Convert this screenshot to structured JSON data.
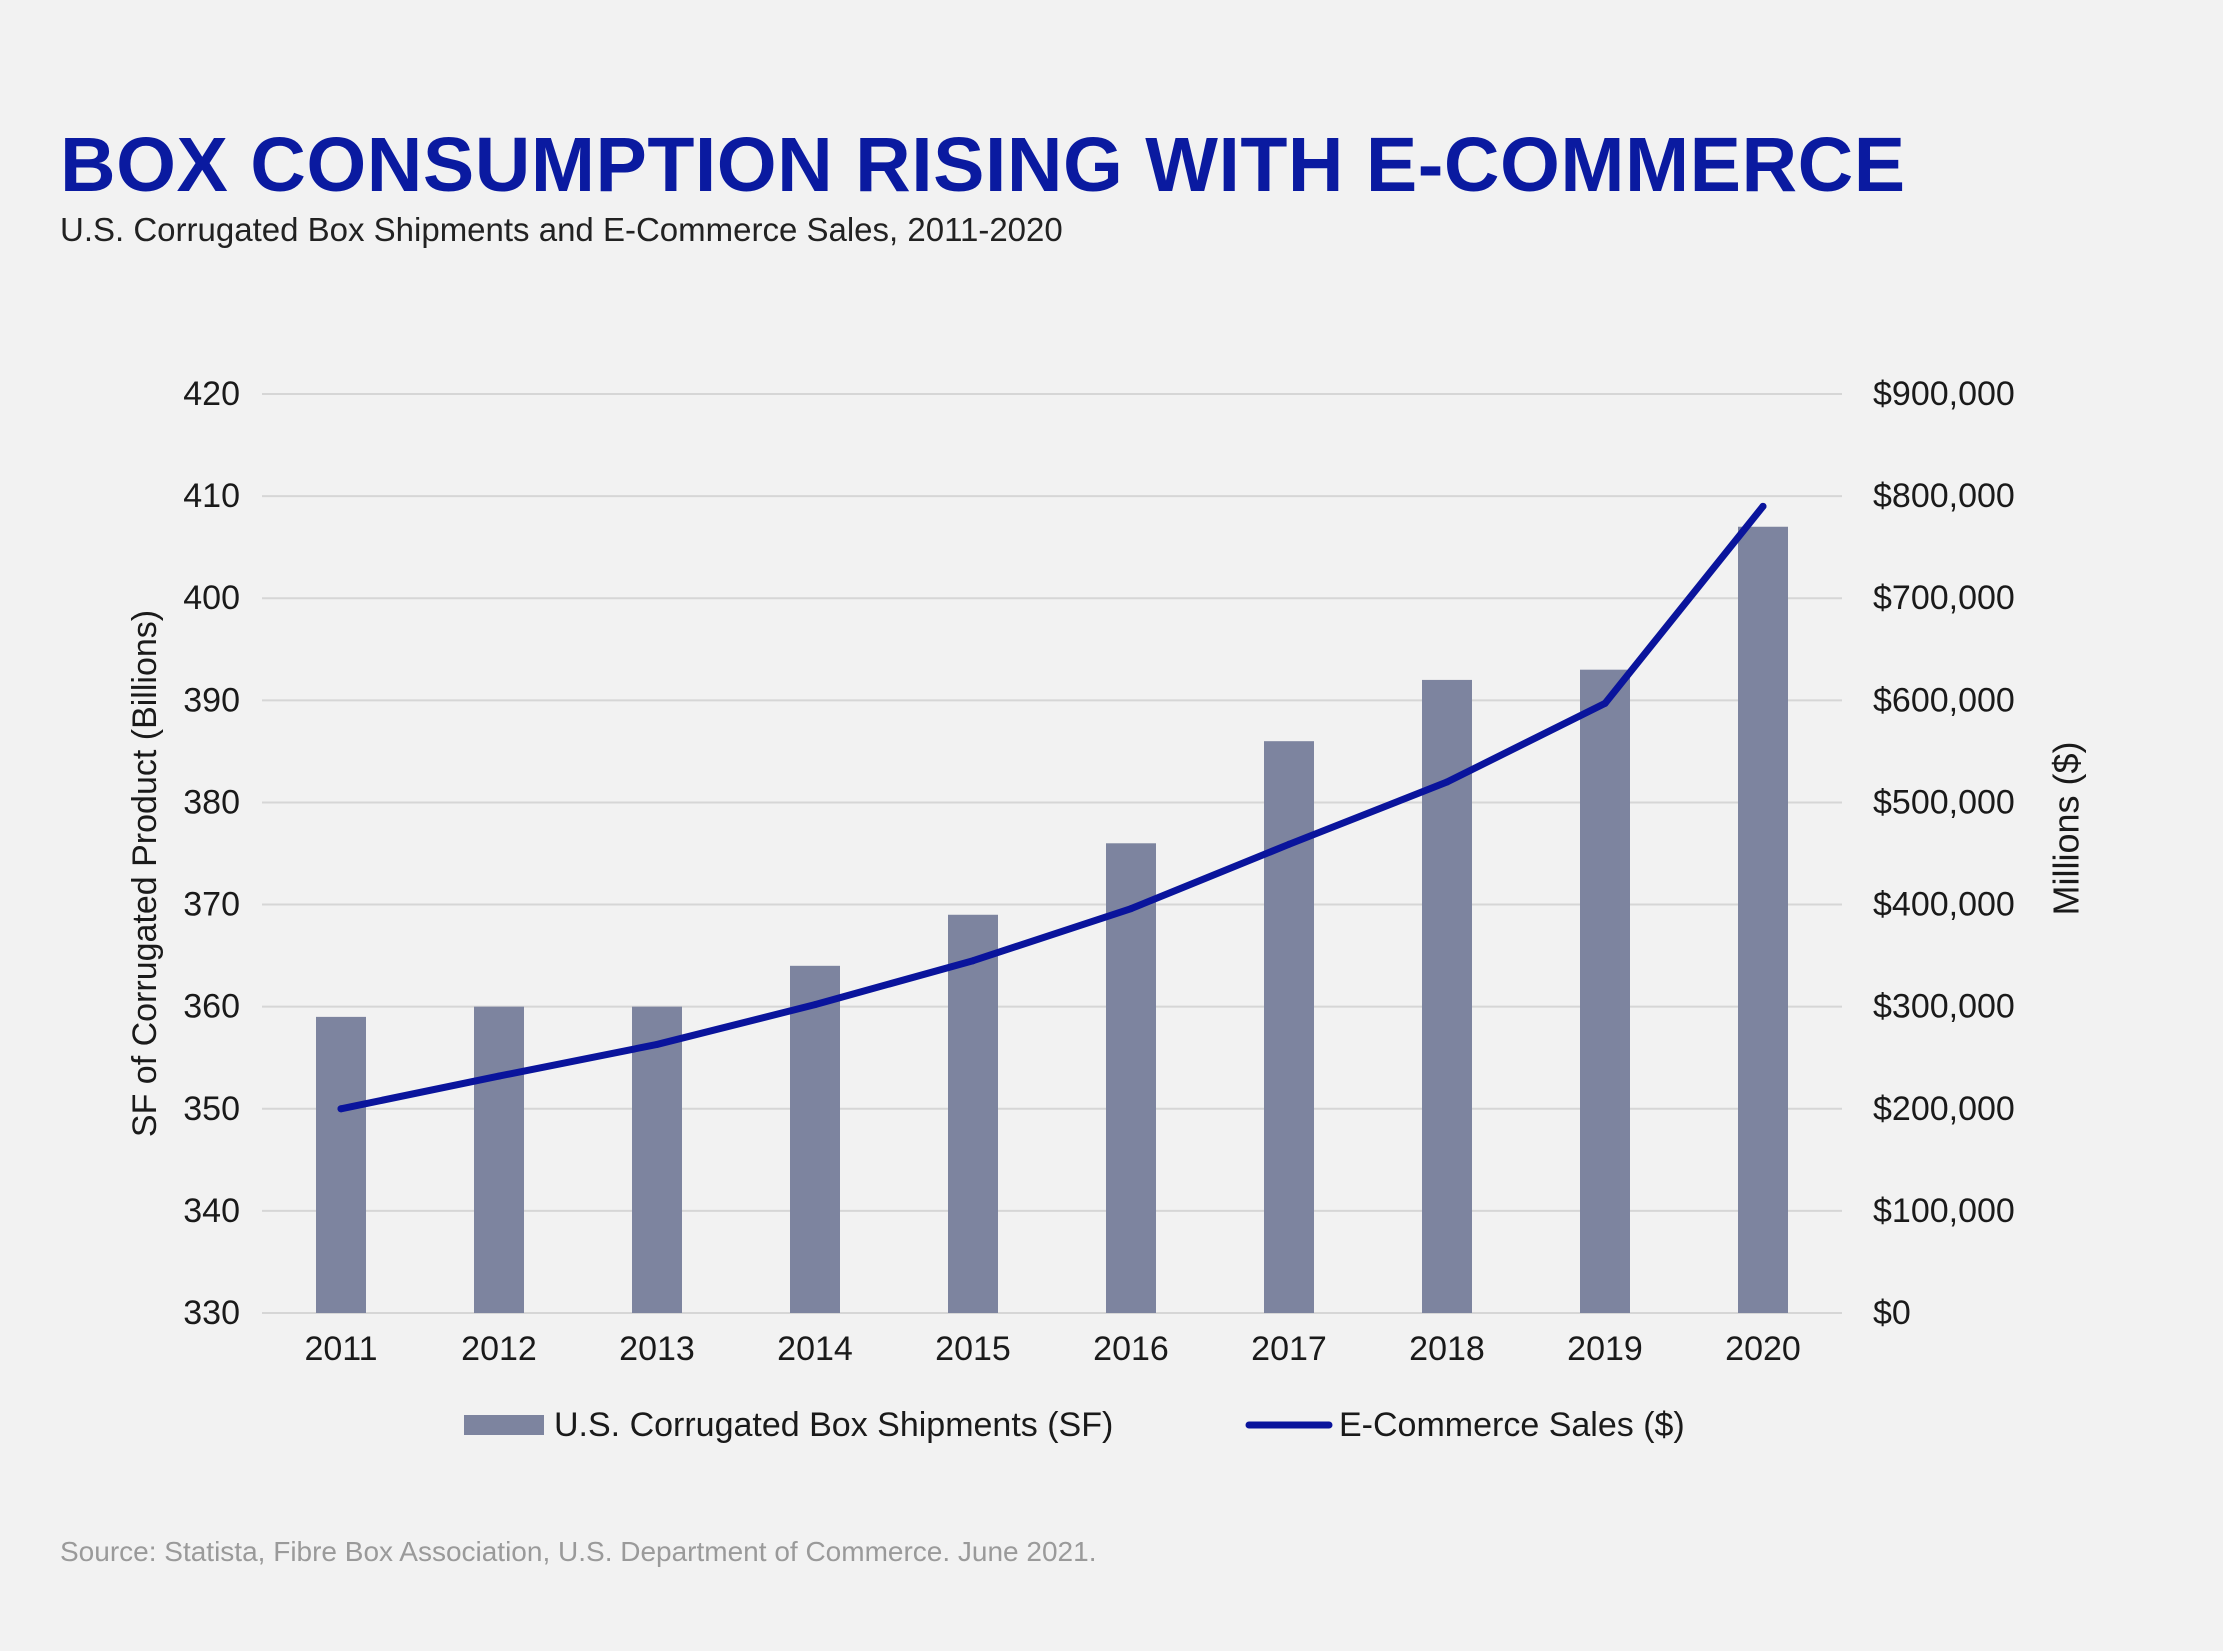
{
  "header": {
    "title": "BOX CONSUMPTION RISING WITH E-COMMERCE",
    "subtitle": "U.S. Corrugated Box Shipments and E-Commerce Sales, 2011-2020"
  },
  "footer": {
    "source": "Source: Statista, Fibre Box Association, U.S. Department of Commerce. June 2021."
  },
  "colors": {
    "bar": "#7d849f",
    "line": "#0a149c",
    "grid": "#d6d6d6",
    "title": "#0a1aa0"
  },
  "chart_data": {
    "type": "bar",
    "categories": [
      "2011",
      "2012",
      "2013",
      "2014",
      "2015",
      "2016",
      "2017",
      "2018",
      "2019",
      "2020"
    ],
    "series": [
      {
        "name": "U.S. Corrugated Box Shipments (SF)",
        "type": "bar",
        "axis": "left",
        "values": [
          359,
          360,
          360,
          364,
          369,
          376,
          386,
          392,
          393,
          407
        ]
      },
      {
        "name": "E-Commerce Sales ($)",
        "type": "line",
        "axis": "right",
        "values": [
          200000,
          232000,
          263000,
          302000,
          345000,
          396000,
          459000,
          520000,
          597000,
          790000
        ]
      }
    ],
    "ylabel": "SF of Corrugated Product (Billions)",
    "ylim": [
      330,
      420
    ],
    "yticks": [
      "330",
      "340",
      "350",
      "360",
      "370",
      "380",
      "390",
      "400",
      "410",
      "420"
    ],
    "y2label": "Millions ($)",
    "y2lim": [
      0,
      900000
    ],
    "y2ticks": [
      "$0",
      "$100,000",
      "$200,000",
      "$300,000",
      "$400,000",
      "$500,000",
      "$600,000",
      "$700,000",
      "$800,000",
      "$900,000"
    ],
    "grid": true,
    "legend_position": "bottom"
  }
}
